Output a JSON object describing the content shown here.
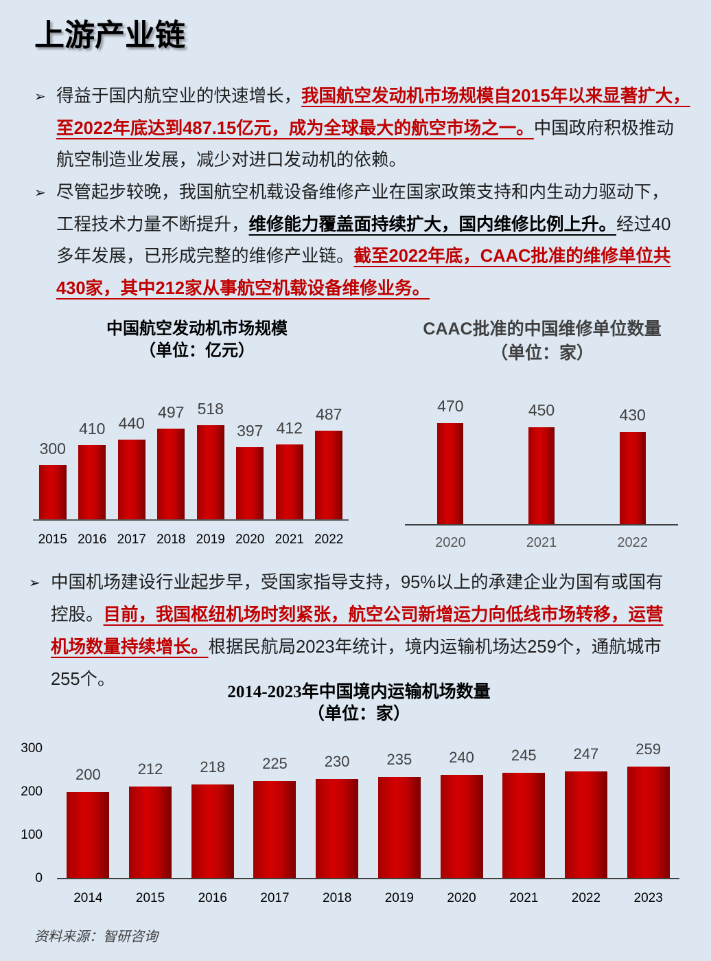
{
  "page": {
    "title": "上游产业链",
    "source": "资料来源：智研咨询",
    "background": "#dde7f2",
    "highlight_color": "#c00000"
  },
  "bullet_icon": "arrow-bullet-icon",
  "bullets": [
    {
      "lines": [
        [
          "得益于国内航空业的快速增长，",
          "我国航空发动机市场规模自2015年以来显著扩大，"
        ],
        [
          "至2022年底达到487.15亿元，成为全球最大的航空市场之一。",
          "中国政府积极推动"
        ],
        [
          "航空制造业发展，减少对进口发动机的依赖。"
        ]
      ]
    },
    {
      "lines": [
        [
          "尽管起步较晚，我国航空机载设备维修产业在国家政策支持和内生动力驱动下，"
        ],
        [
          "工程技术力量不断提升，",
          "维修能力覆盖面持续扩大，国内维修比例上升。",
          "经过40"
        ],
        [
          "多年发展，已形成完整的维修产业链。",
          "截至2022年底，CAAC批准的维修单位共"
        ],
        [
          "430家，其中212家从事航空机载设备维修业务。"
        ]
      ]
    },
    {
      "lines": [
        [
          "中国机场建设行业起步早，受国家指导支持，95%以上的承建企业为国有或国有"
        ],
        [
          "控股。",
          "目前，我国枢纽机场时刻紧张，航空公司新增运力向低线市场转移，运营"
        ],
        [
          "机场数量持续增长。",
          "根据民航局2023年统计，境内运输机场达259个，通航城市"
        ],
        [
          "255个。"
        ]
      ]
    }
  ],
  "chart_data": [
    {
      "type": "bar",
      "title": "中国航空发动机市场规模",
      "subtitle": "（单位：亿元）",
      "categories": [
        "2015",
        "2016",
        "2017",
        "2018",
        "2019",
        "2020",
        "2021",
        "2022"
      ],
      "values": [
        300,
        410,
        440,
        497,
        518,
        397,
        412,
        487
      ],
      "ylim": [
        0,
        600
      ],
      "grid": false,
      "bar_color": "#c00000"
    },
    {
      "type": "bar",
      "title": "CAAC批准的中国维修单位数量",
      "subtitle": "（单位：家）",
      "categories": [
        "2020",
        "2021",
        "2022"
      ],
      "values": [
        470,
        450,
        430
      ],
      "ylim": [
        0,
        500
      ],
      "grid": false,
      "bar_color": "#c00000"
    },
    {
      "type": "bar",
      "title": "2014-2023年中国境内运输机场数量",
      "subtitle": "（单位：家）",
      "categories": [
        "2014",
        "2015",
        "2016",
        "2017",
        "2018",
        "2019",
        "2020",
        "2021",
        "2022",
        "2023"
      ],
      "values": [
        200,
        212,
        218,
        225,
        230,
        235,
        240,
        245,
        247,
        259
      ],
      "yticks": [
        0,
        100,
        200,
        300
      ],
      "ylim": [
        0,
        300
      ],
      "grid": false,
      "bar_color": "#c00000"
    }
  ]
}
